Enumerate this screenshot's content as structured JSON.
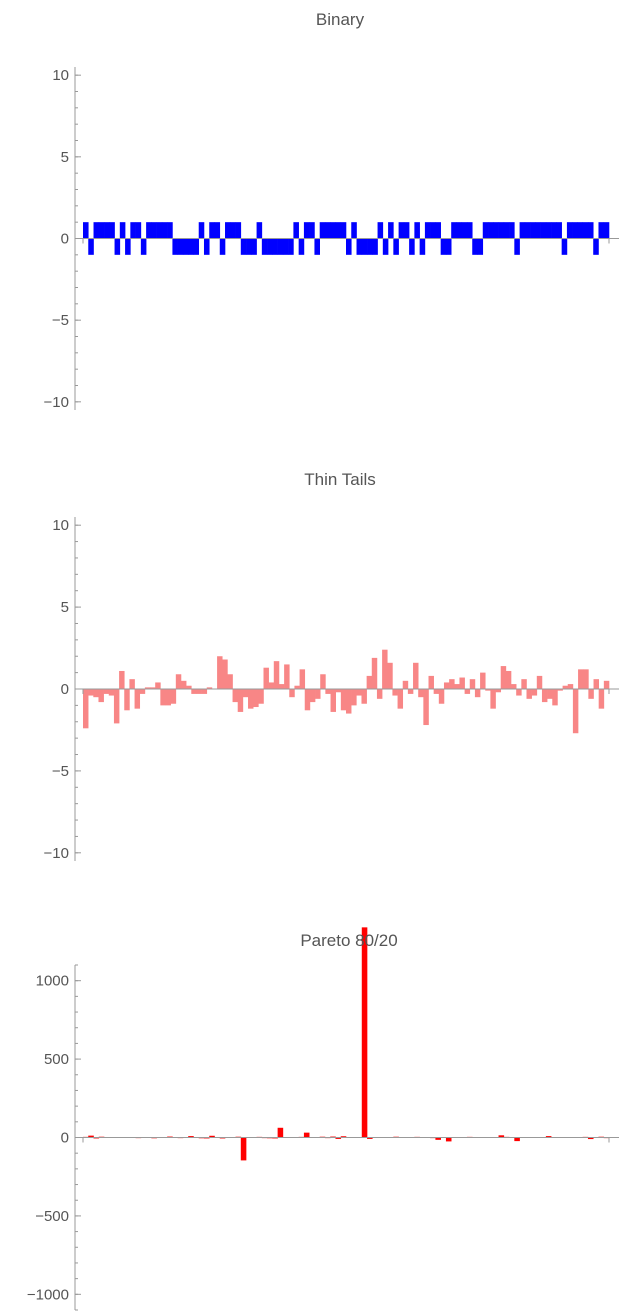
{
  "chart_data": [
    {
      "type": "bar",
      "title": "Binary",
      "color": "#0000ff",
      "ylim": [
        -10.5,
        10.5
      ],
      "yticks": [
        10,
        5,
        0,
        -5,
        -10
      ],
      "ytick_labels": [
        "10",
        "5",
        "0",
        "−5",
        "−10"
      ],
      "values": [
        1,
        -1,
        1,
        1,
        1,
        1,
        -1,
        1,
        -1,
        1,
        1,
        -1,
        1,
        1,
        1,
        1,
        1,
        -1,
        -1,
        -1,
        -1,
        -1,
        1,
        -1,
        1,
        1,
        -1,
        1,
        1,
        1,
        -1,
        -1,
        -1,
        1,
        -1,
        -1,
        -1,
        -1,
        -1,
        -1,
        1,
        -1,
        1,
        1,
        -1,
        1,
        1,
        1,
        1,
        1,
        -1,
        1,
        -1,
        -1,
        -1,
        -1,
        1,
        -1,
        1,
        -1,
        1,
        1,
        -1,
        1,
        -1,
        1,
        1,
        1,
        -1,
        -1,
        1,
        1,
        1,
        1,
        -1,
        -1,
        1,
        1,
        1,
        1,
        1,
        1,
        -1,
        1,
        1,
        1,
        1,
        1,
        1,
        1,
        1,
        -1,
        1,
        1,
        1,
        1,
        1,
        -1,
        1,
        1
      ]
    },
    {
      "type": "bar",
      "title": "Thin Tails",
      "color": "#f88686",
      "ylim": [
        -10.5,
        10.5
      ],
      "yticks": [
        10,
        5,
        0,
        -5,
        -10
      ],
      "ytick_labels": [
        "10",
        "5",
        "0",
        "−5",
        "−10"
      ],
      "values": [
        -2.4,
        -0.4,
        -0.5,
        -0.8,
        -0.3,
        -0.4,
        -2.1,
        1.1,
        -1.3,
        0.6,
        -1.2,
        -0.3,
        0.1,
        0.1,
        0.4,
        -1.0,
        -1.0,
        -0.9,
        0.9,
        0.5,
        0.2,
        -0.3,
        -0.3,
        -0.3,
        0.1,
        0.0,
        2.0,
        1.8,
        0.9,
        -0.8,
        -1.4,
        -0.5,
        -1.2,
        -1.1,
        -0.9,
        1.3,
        0.4,
        1.7,
        0.3,
        1.5,
        -0.5,
        0.2,
        1.2,
        -1.3,
        -0.8,
        -0.6,
        0.9,
        -0.3,
        -1.4,
        -0.2,
        -1.3,
        -1.5,
        -1.0,
        -0.4,
        -0.9,
        0.8,
        1.9,
        -0.6,
        2.4,
        1.6,
        -0.4,
        -1.2,
        0.5,
        -0.3,
        1.6,
        -0.5,
        -2.2,
        0.8,
        -0.3,
        -0.9,
        0.4,
        0.6,
        0.3,
        0.7,
        -0.3,
        0.6,
        -0.5,
        1.0,
        -0.1,
        -1.2,
        -0.2,
        1.4,
        1.1,
        0.3,
        -0.4,
        0.6,
        -0.6,
        -0.4,
        0.8,
        -0.8,
        -0.6,
        -1.0,
        -0.1,
        0.2,
        0.3,
        -2.7,
        1.2,
        1.2,
        -0.6,
        0.6,
        -1.2,
        0.5
      ]
    },
    {
      "type": "bar",
      "title": "Pareto 80/20",
      "color": "#ff0000",
      "ylim": [
        -1100,
        1100
      ],
      "yticks": [
        1000,
        500,
        0,
        -500,
        -1000
      ],
      "ytick_labels": [
        "1000",
        "500",
        "0",
        "−500",
        "−1000"
      ],
      "values": [
        4,
        12,
        -6,
        5,
        -3,
        2,
        -2,
        1,
        -2,
        3,
        -4,
        -2,
        1,
        -5,
        0,
        3,
        6,
        -3,
        -4,
        -2,
        9,
        3,
        -5,
        -6,
        11,
        -2,
        -6,
        2,
        -1,
        5,
        -146,
        3,
        2,
        4,
        -4,
        -5,
        -6,
        62,
        1,
        1,
        -3,
        4,
        31,
        1,
        -1,
        5,
        -4,
        6,
        -9,
        8,
        2,
        2,
        1,
        1340,
        -9,
        2,
        3,
        2,
        1,
        5,
        2,
        1,
        -1,
        4,
        -3,
        -2,
        -4,
        -15,
        1,
        -25,
        2,
        3,
        -3,
        4,
        2,
        1,
        -2,
        -3,
        2,
        14,
        4,
        3,
        -23,
        2,
        -1,
        3,
        2,
        -3,
        9,
        2,
        1,
        -2,
        3,
        -1,
        1,
        4,
        -10,
        -3,
        5,
        -4
      ]
    }
  ]
}
